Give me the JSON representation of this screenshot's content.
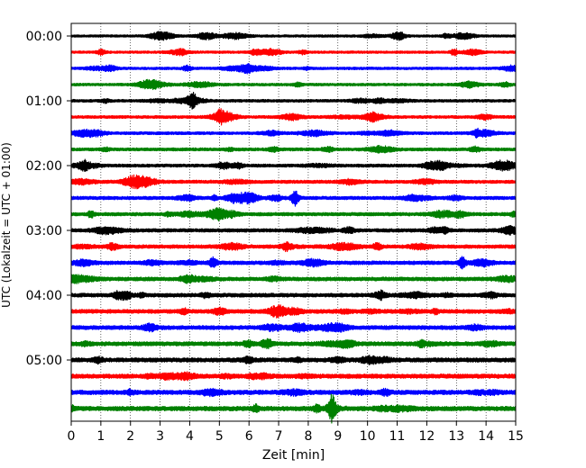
{
  "chart_data": {
    "type": "line",
    "title": "",
    "xlabel": "Zeit  [min]",
    "ylabel": "UTC (Lokalzeit = UTC + 01:00)",
    "xlim": [
      0,
      15
    ],
    "x_ticks": [
      0,
      1,
      2,
      3,
      4,
      5,
      6,
      7,
      8,
      9,
      10,
      11,
      12,
      13,
      14,
      15
    ],
    "grid": "vertical dotted",
    "row_interval_minutes": 15,
    "row_colors": [
      "#000000",
      "#ff0000",
      "#0000ff",
      "#008000"
    ],
    "y_ticks": [
      {
        "label": "00:00",
        "row": 0
      },
      {
        "label": "01:00",
        "row": 4
      },
      {
        "label": "02:00",
        "row": 8
      },
      {
        "label": "03:00",
        "row": 12
      },
      {
        "label": "04:00",
        "row": 16
      },
      {
        "label": "05:00",
        "row": 20
      }
    ],
    "rows": [
      "00:00",
      "00:15",
      "00:30",
      "00:45",
      "01:00",
      "01:15",
      "01:30",
      "01:45",
      "02:00",
      "02:15",
      "02:30",
      "02:45",
      "03:00",
      "03:15",
      "03:30",
      "03:45",
      "04:00",
      "04:15",
      "04:30",
      "04:45",
      "05:00",
      "05:15",
      "05:30",
      "05:45"
    ],
    "events": [
      {
        "row": 4,
        "x": 4.1,
        "amplitude": 2.0
      },
      {
        "row": 10,
        "x": 7.55,
        "amplitude": 2.5
      },
      {
        "row": 14,
        "x": 4.8,
        "amplitude": 1.6
      },
      {
        "row": 14,
        "x": 13.2,
        "amplitude": 1.6
      },
      {
        "row": 23,
        "x": 8.8,
        "amplitude": 4.0
      }
    ]
  }
}
